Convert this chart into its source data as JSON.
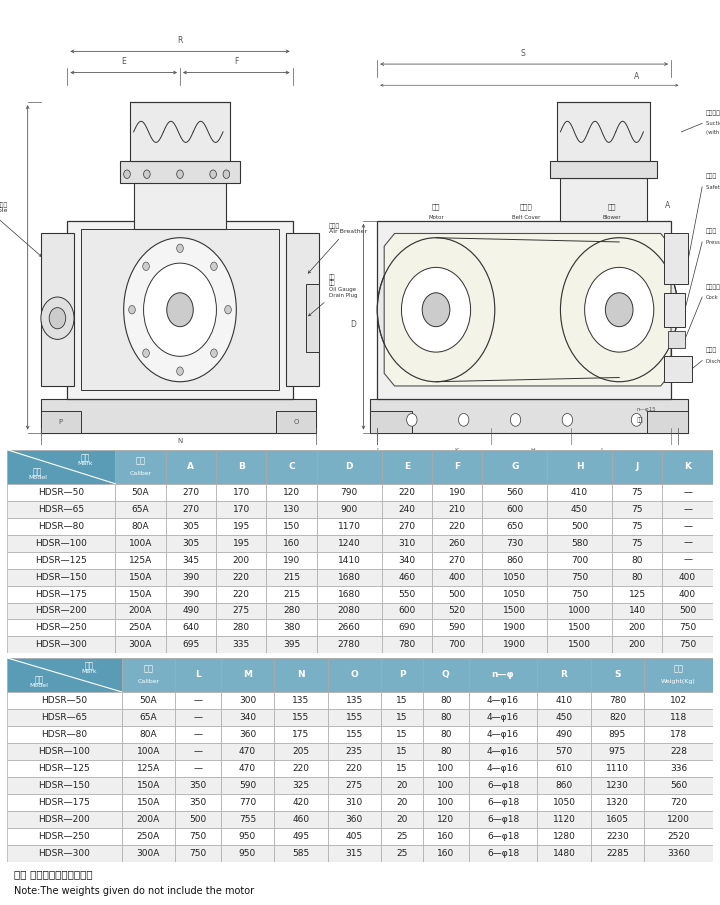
{
  "table1_header": [
    "记号 Mark\n型式 Model",
    "口径\nCaliber",
    "A",
    "B",
    "C",
    "D",
    "E",
    "F",
    "G",
    "H",
    "J",
    "K"
  ],
  "table1_rows": [
    [
      "HDSR—50",
      "50A",
      "270",
      "170",
      "120",
      "790",
      "220",
      "190",
      "560",
      "410",
      "75",
      "—"
    ],
    [
      "HDSR—65",
      "65A",
      "270",
      "170",
      "130",
      "900",
      "240",
      "210",
      "600",
      "450",
      "75",
      "—"
    ],
    [
      "HDSR—80",
      "80A",
      "305",
      "195",
      "150",
      "1170",
      "270",
      "220",
      "650",
      "500",
      "75",
      "—"
    ],
    [
      "HDSR—100",
      "100A",
      "305",
      "195",
      "160",
      "1240",
      "310",
      "260",
      "730",
      "580",
      "75",
      "—"
    ],
    [
      "HDSR—125",
      "125A",
      "345",
      "200",
      "190",
      "1410",
      "340",
      "270",
      "860",
      "700",
      "80",
      "—"
    ],
    [
      "HDSR—150",
      "150A",
      "390",
      "220",
      "215",
      "1680",
      "460",
      "400",
      "1050",
      "750",
      "80",
      "400"
    ],
    [
      "HDSR—175",
      "150A",
      "390",
      "220",
      "215",
      "1680",
      "550",
      "500",
      "1050",
      "750",
      "125",
      "400"
    ],
    [
      "HDSR—200",
      "200A",
      "490",
      "275",
      "280",
      "2080",
      "600",
      "520",
      "1500",
      "1000",
      "140",
      "500"
    ],
    [
      "HDSR—250",
      "250A",
      "640",
      "280",
      "380",
      "2660",
      "690",
      "590",
      "1900",
      "1500",
      "200",
      "750"
    ],
    [
      "HDSR—300",
      "300A",
      "695",
      "335",
      "395",
      "2780",
      "780",
      "700",
      "1900",
      "1500",
      "200",
      "750"
    ]
  ],
  "table2_header": [
    "记号 Mark\n型式 Model",
    "口径\nCaliber",
    "L",
    "M",
    "N",
    "O",
    "P",
    "Q",
    "n—φ",
    "R",
    "S",
    "重量\nWeight(Kg)"
  ],
  "table2_rows": [
    [
      "HDSR—50",
      "50A",
      "—",
      "300",
      "135",
      "135",
      "15",
      "80",
      "4—φ16",
      "410",
      "780",
      "102"
    ],
    [
      "HDSR—65",
      "65A",
      "—",
      "340",
      "155",
      "155",
      "15",
      "80",
      "4—φ16",
      "450",
      "820",
      "118"
    ],
    [
      "HDSR—80",
      "80A",
      "—",
      "360",
      "175",
      "155",
      "15",
      "80",
      "4—φ16",
      "490",
      "895",
      "178"
    ],
    [
      "HDSR—100",
      "100A",
      "—",
      "470",
      "205",
      "235",
      "15",
      "80",
      "4—φ16",
      "570",
      "975",
      "228"
    ],
    [
      "HDSR—125",
      "125A",
      "—",
      "470",
      "220",
      "220",
      "15",
      "100",
      "4—φ16",
      "610",
      "1110",
      "336"
    ],
    [
      "HDSR—150",
      "150A",
      "350",
      "590",
      "325",
      "275",
      "20",
      "100",
      "6—φ18",
      "860",
      "1230",
      "560"
    ],
    [
      "HDSR—175",
      "150A",
      "350",
      "770",
      "420",
      "310",
      "20",
      "100",
      "6—φ18",
      "1050",
      "1320",
      "720"
    ],
    [
      "HDSR—200",
      "200A",
      "500",
      "755",
      "460",
      "360",
      "20",
      "120",
      "6—φ18",
      "1120",
      "1605",
      "1200"
    ],
    [
      "HDSR—250",
      "250A",
      "750",
      "950",
      "495",
      "405",
      "25",
      "160",
      "6—φ18",
      "1280",
      "2230",
      "2520"
    ],
    [
      "HDSR—300",
      "300A",
      "750",
      "950",
      "585",
      "315",
      "25",
      "160",
      "6—φ18",
      "1480",
      "2285",
      "3360"
    ]
  ],
  "note_cn": "注： 重量中不包括电机重量",
  "note_en": "Note:The weights given do not include the motor",
  "header_bg": "#5a9cb5",
  "subheader_bg": "#7ab0c5",
  "header_fg": "#ffffff",
  "row_bg_odd": "#ffffff",
  "row_bg_even": "#efefef",
  "border_color": "#aaaaaa",
  "text_color": "#222222",
  "draw_line_color": "#333333",
  "dim_color": "#555555"
}
